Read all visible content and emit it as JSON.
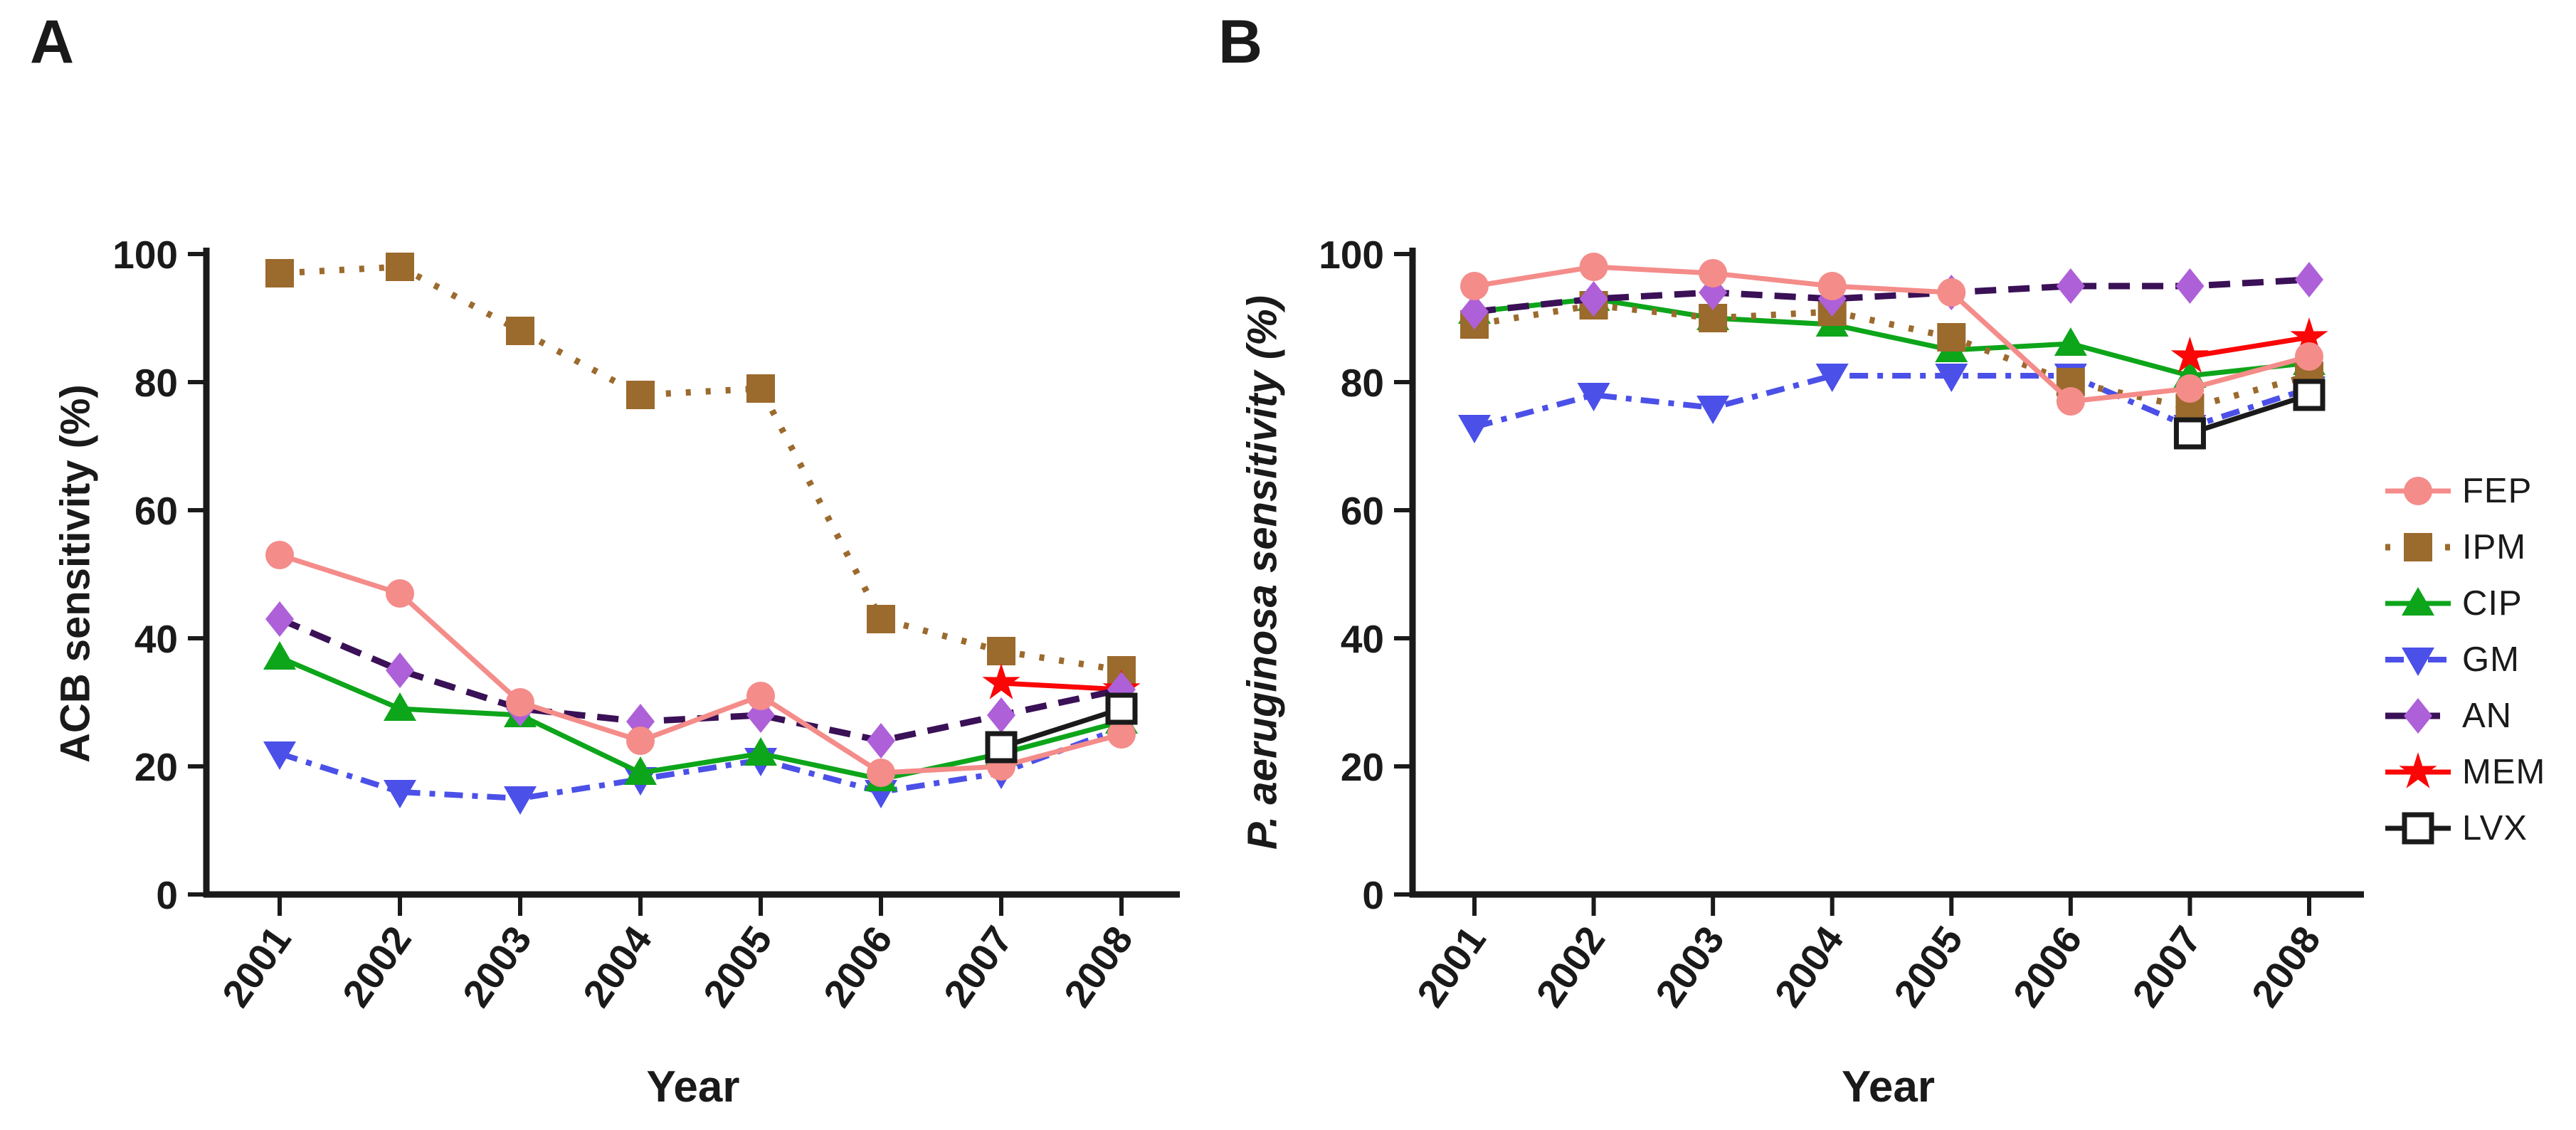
{
  "figure": {
    "background": "#FFFFFF",
    "text_color": "#1A1A1A",
    "panels": [
      {
        "label": "A",
        "y_title": "ACB sensitivity (%)",
        "x_title": "Year",
        "y_ticks": [
          100,
          80,
          60,
          40,
          20,
          0
        ],
        "years": [
          "2001",
          "2002",
          "2003",
          "2004",
          "2005",
          "2006",
          "2007",
          "2008"
        ]
      },
      {
        "label": "B",
        "y_title": "P. aeruginosa sensitivity (%)",
        "x_title": "Year",
        "y_ticks": [
          100,
          80,
          60,
          40,
          20,
          0
        ],
        "years": [
          "2001",
          "2002",
          "2003",
          "2004",
          "2005",
          "2006",
          "2007",
          "2008"
        ]
      }
    ],
    "legend": {
      "items": [
        "FEP",
        "IPM",
        "CIP",
        "GM",
        "AN",
        "MEM",
        "LVX"
      ]
    }
  },
  "chart_data": [
    {
      "type": "line",
      "title": "A",
      "ylabel": "ACB sensitivity (%)",
      "xlabel": "Year",
      "ylim": [
        0,
        100
      ],
      "grid": false,
      "legend_position": "right-of-figure",
      "x": [
        2001,
        2002,
        2003,
        2004,
        2005,
        2006,
        2007,
        2008
      ],
      "series": [
        {
          "name": "FEP",
          "values": [
            53,
            47,
            30,
            24,
            31,
            19,
            20,
            25
          ],
          "color": "#F48C8A",
          "marker": "circle",
          "line": "solid"
        },
        {
          "name": "IPM",
          "values": [
            97,
            98,
            88,
            78,
            79,
            43,
            38,
            35
          ],
          "color": "#9B6A2D",
          "marker": "square",
          "line": "dotted"
        },
        {
          "name": "CIP",
          "values": [
            37,
            29,
            28,
            19,
            22,
            18,
            22,
            27
          ],
          "color": "#0DA51A",
          "marker": "triangle-up",
          "line": "solid"
        },
        {
          "name": "GM",
          "values": [
            22,
            16,
            15,
            18,
            21,
            16,
            19,
            26
          ],
          "color": "#4B50E8",
          "marker": "triangle-down",
          "line": "dashdot"
        },
        {
          "name": "AN",
          "values": [
            43,
            35,
            29,
            27,
            28,
            24,
            28,
            32
          ],
          "color": "#AE60D8",
          "line_color": "#3A1056",
          "marker": "diamond",
          "line": "dashed"
        },
        {
          "name": "MEM",
          "values": [
            null,
            null,
            null,
            null,
            null,
            null,
            33,
            32
          ],
          "color": "#FA0606",
          "marker": "star",
          "line": "solid"
        },
        {
          "name": "LVX",
          "values": [
            null,
            null,
            null,
            null,
            null,
            null,
            23,
            29
          ],
          "color": "#1A1A1A",
          "marker": "square-open",
          "line": "solid"
        }
      ]
    },
    {
      "type": "line",
      "title": "B",
      "ylabel": "P. aeruginosa sensitivity (%)",
      "xlabel": "Year",
      "ylim": [
        0,
        100
      ],
      "grid": false,
      "legend_position": "right-of-figure",
      "x": [
        2001,
        2002,
        2003,
        2004,
        2005,
        2006,
        2007,
        2008
      ],
      "series": [
        {
          "name": "FEP",
          "values": [
            95,
            98,
            97,
            95,
            94,
            77,
            79,
            84
          ],
          "color": "#F48C8A",
          "marker": "circle",
          "line": "solid"
        },
        {
          "name": "IPM",
          "values": [
            89,
            92,
            90,
            91,
            87,
            80,
            76,
            81
          ],
          "color": "#9B6A2D",
          "marker": "square",
          "line": "dotted"
        },
        {
          "name": "CIP",
          "values": [
            91,
            93,
            90,
            89,
            85,
            86,
            81,
            83
          ],
          "color": "#0DA51A",
          "marker": "triangle-up",
          "line": "solid"
        },
        {
          "name": "GM",
          "values": [
            73,
            78,
            76,
            81,
            81,
            81,
            73,
            79
          ],
          "color": "#4B50E8",
          "marker": "triangle-down",
          "line": "dashdot"
        },
        {
          "name": "AN",
          "values": [
            91,
            93,
            94,
            93,
            94,
            95,
            95,
            96
          ],
          "color": "#AE60D8",
          "line_color": "#3A1056",
          "marker": "diamond",
          "line": "dashed"
        },
        {
          "name": "MEM",
          "values": [
            null,
            null,
            null,
            null,
            null,
            null,
            84,
            87
          ],
          "color": "#FA0606",
          "marker": "star",
          "line": "solid"
        },
        {
          "name": "LVX",
          "values": [
            null,
            null,
            null,
            null,
            null,
            null,
            72,
            78
          ],
          "color": "#1A1A1A",
          "marker": "square-open",
          "line": "solid"
        }
      ]
    }
  ]
}
